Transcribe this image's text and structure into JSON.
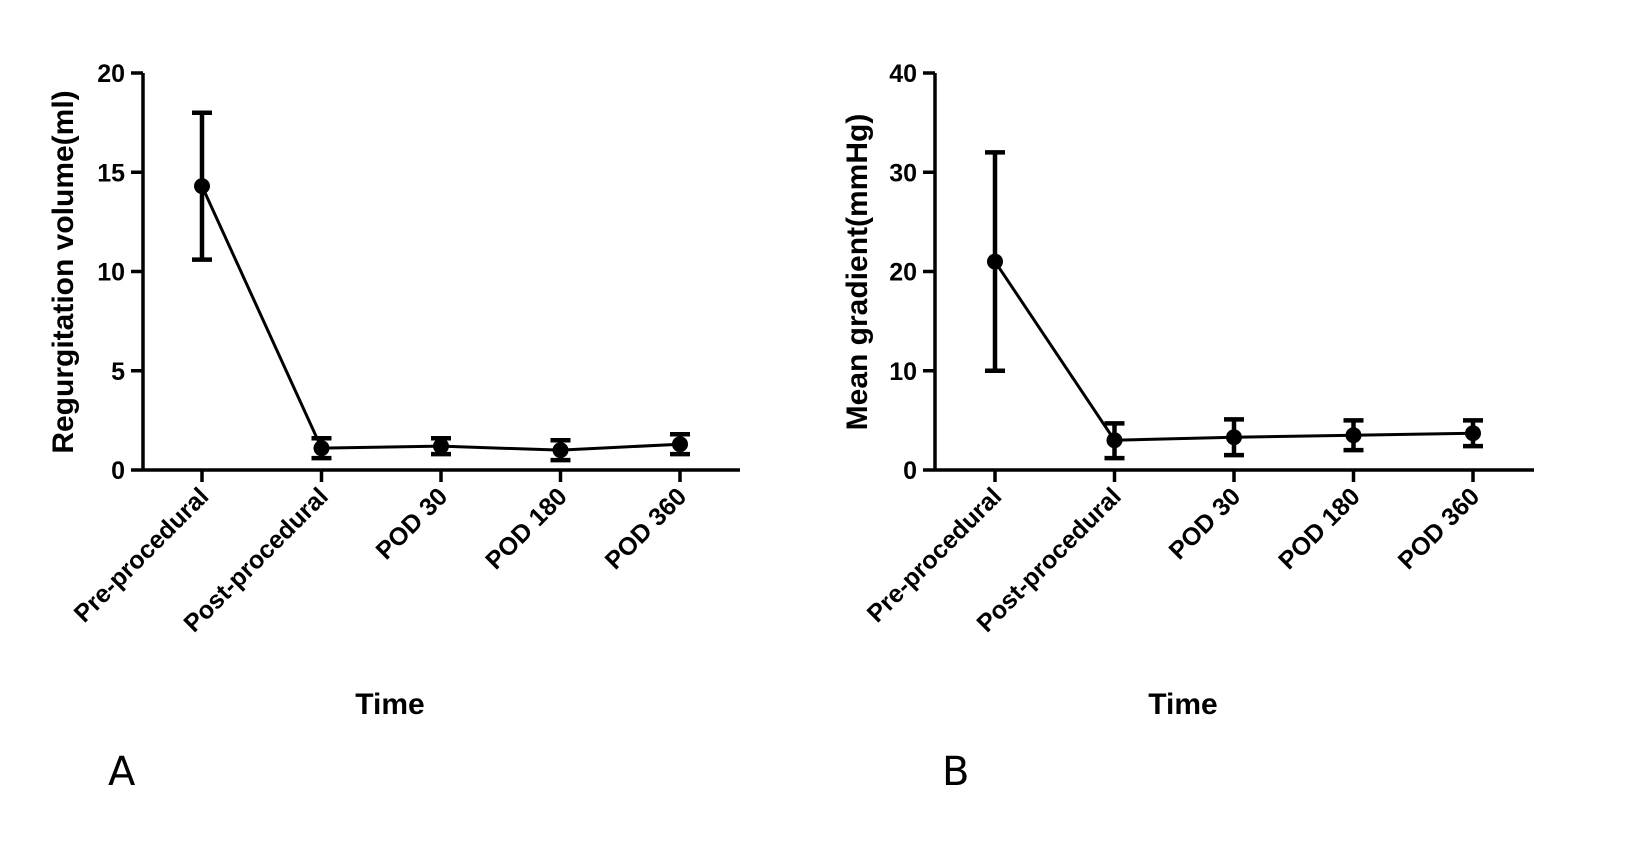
{
  "chart_data": [
    {
      "type": "line",
      "panel_label": "A",
      "title": "",
      "xlabel": "Time",
      "ylabel": "Regurgitation volume(ml)",
      "categories": [
        "Pre-procedural",
        "Post-procedural",
        "POD 30",
        "POD 180",
        "POD 360"
      ],
      "series": [
        {
          "name": "Regurgitation volume",
          "values": [
            14.3,
            1.1,
            1.2,
            1.0,
            1.3
          ],
          "error_low": [
            10.6,
            0.6,
            0.8,
            0.5,
            0.8
          ],
          "error_high": [
            18.0,
            1.6,
            1.6,
            1.5,
            1.8
          ]
        }
      ],
      "ylim": [
        0,
        20
      ],
      "yticks": [
        0,
        5,
        10,
        15,
        20
      ],
      "ytick_labels": [
        "0",
        "5",
        "10",
        "15",
        "20"
      ],
      "grid": false,
      "legend": "none"
    },
    {
      "type": "line",
      "panel_label": "B",
      "title": "",
      "xlabel": "Time",
      "ylabel": "Mean gradient(mmHg)",
      "categories": [
        "Pre-procedural",
        "Post-procedural",
        "POD 30",
        "POD 180",
        "POD 360"
      ],
      "series": [
        {
          "name": "Mean gradient",
          "values": [
            21.0,
            3.0,
            3.3,
            3.5,
            3.7
          ],
          "error_low": [
            10.0,
            1.2,
            1.5,
            2.0,
            2.4
          ],
          "error_high": [
            32.0,
            4.7,
            5.1,
            5.0,
            5.0
          ]
        }
      ],
      "ylim": [
        0,
        40
      ],
      "yticks": [
        0,
        10,
        20,
        30,
        40
      ],
      "ytick_labels": [
        "0",
        "10",
        "20",
        "30",
        "40"
      ],
      "grid": false,
      "legend": "none"
    }
  ]
}
